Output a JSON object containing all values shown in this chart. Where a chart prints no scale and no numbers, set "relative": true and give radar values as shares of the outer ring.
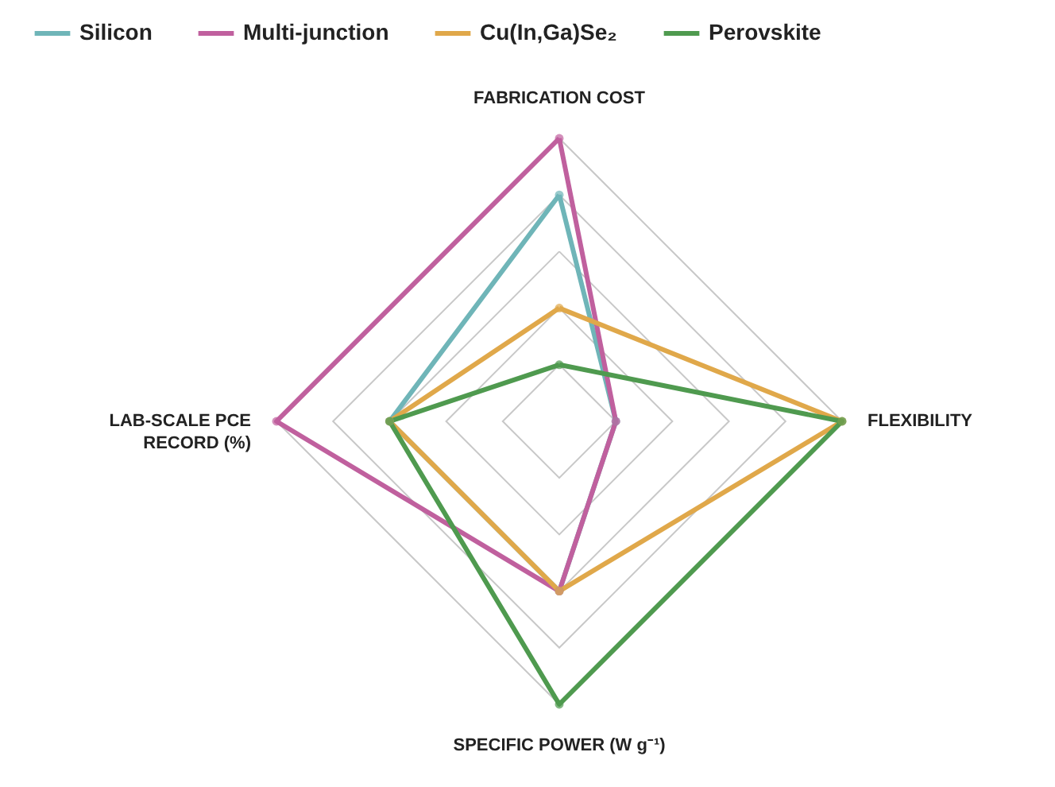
{
  "chart_data": {
    "type": "radar",
    "relative": true,
    "categories": [
      "FABRICATION COST",
      "FLEXIBILITY",
      "SPECIFIC POWER (W g⁻¹)",
      "LAB-SCALE PCE RECORD (%)"
    ],
    "series": [
      {
        "name": "Silicon",
        "color": "#6fb5b8",
        "values": [
          0.8,
          0.2,
          0.6,
          0.6
        ]
      },
      {
        "name": "Multi-junction",
        "color": "#c0609e",
        "values": [
          1.0,
          0.2,
          0.6,
          1.0
        ]
      },
      {
        "name": "Cu(In,Ga)Se₂",
        "color": "#e0a84a",
        "values": [
          0.4,
          1.0,
          0.6,
          0.6
        ]
      },
      {
        "name": "Perovskite",
        "color": "#4f9a4f",
        "values": [
          0.2,
          1.0,
          1.0,
          0.6
        ]
      }
    ],
    "legend": "top",
    "marker": "circle",
    "line_style": "solid"
  }
}
